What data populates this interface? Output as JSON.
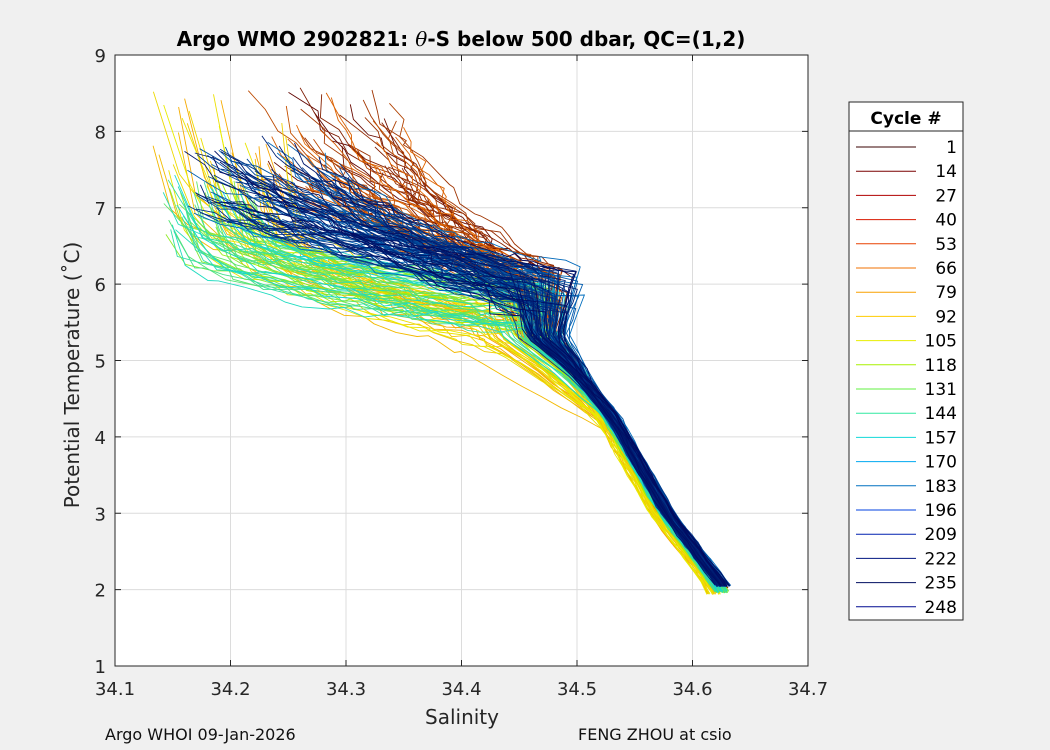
{
  "chart_data": {
    "type": "line",
    "title_prefix": "Argo WMO 2902821: ",
    "title_theta": "θ",
    "title_suffix": "-S below 500 dbar,  QC=(1,2)",
    "xlabel": "Salinity",
    "ylabel": "Potential Temperature (˚C)",
    "xlim": [
      34.1,
      34.7
    ],
    "ylim": [
      1,
      9
    ],
    "xticks": [
      34.1,
      34.2,
      34.3,
      34.4,
      34.5,
      34.6,
      34.7
    ],
    "xtick_labels": [
      "34.1",
      "34.2",
      "34.3",
      "34.4",
      "34.5",
      "34.6",
      "34.7"
    ],
    "yticks": [
      1,
      2,
      3,
      4,
      5,
      6,
      7,
      8,
      9
    ],
    "ytick_labels": [
      "1",
      "2",
      "3",
      "4",
      "5",
      "6",
      "7",
      "8",
      "9"
    ],
    "grid": true,
    "legend_title": "Cycle #",
    "legend_position": "right-outside",
    "legend_entries": [
      {
        "label": "1",
        "color": "#3a0000"
      },
      {
        "label": "14",
        "color": "#7a0000"
      },
      {
        "label": "27",
        "color": "#b00000"
      },
      {
        "label": "40",
        "color": "#d81800"
      },
      {
        "label": "53",
        "color": "#e84000"
      },
      {
        "label": "66",
        "color": "#f07000"
      },
      {
        "label": "79",
        "color": "#f8a000"
      },
      {
        "label": "92",
        "color": "#ffcc00"
      },
      {
        "label": "105",
        "color": "#e8ee00"
      },
      {
        "label": "118",
        "color": "#a8f000"
      },
      {
        "label": "131",
        "color": "#60f040"
      },
      {
        "label": "144",
        "color": "#30e8a0"
      },
      {
        "label": "157",
        "color": "#10d8d8"
      },
      {
        "label": "170",
        "color": "#00a8f0"
      },
      {
        "label": "183",
        "color": "#0070c0"
      },
      {
        "label": "196",
        "color": "#0040e0"
      },
      {
        "label": "209",
        "color": "#0020b0"
      },
      {
        "label": "222",
        "color": "#001480"
      },
      {
        "label": "235",
        "color": "#000e60"
      },
      {
        "label": "248",
        "color": "#000a90"
      }
    ],
    "series_groups": [
      {
        "name": "cycles 1-60 (red/orange)",
        "color_range": [
          "#5a0000",
          "#f07000"
        ],
        "profile_top": {
          "s": [
            34.22,
            34.35
          ],
          "t": [
            7.2,
            8.6
          ]
        },
        "mid": {
          "s": 34.46,
          "t": 5.9
        },
        "bottom": {
          "s": 34.625,
          "t": 2.02
        }
      },
      {
        "name": "cycles 70-110 (yellow)",
        "color_range": [
          "#f8a000",
          "#e8ee00"
        ],
        "profile_top": {
          "s": [
            34.13,
            34.25
          ],
          "t": [
            7.2,
            8.5
          ]
        },
        "mid": {
          "s": 34.44,
          "t": 5.4
        },
        "bottom": {
          "s": 34.63,
          "t": 1.95
        }
      },
      {
        "name": "cycles 110-175 (green/cyan)",
        "color_range": [
          "#a8f000",
          "#10d8d8"
        ],
        "profile_top": {
          "s": [
            34.14,
            34.22
          ],
          "t": [
            6.6,
            7.4
          ]
        },
        "mid": {
          "s": 34.46,
          "t": 5.7
        },
        "bottom": {
          "s": 34.625,
          "t": 1.97
        }
      },
      {
        "name": "cycles 180-248 (blue)",
        "color_range": [
          "#0070c0",
          "#000a60"
        ],
        "profile_top": {
          "s": [
            34.16,
            34.3
          ],
          "t": [
            6.8,
            7.9
          ]
        },
        "mid": {
          "s": 34.47,
          "t": 5.9
        },
        "bottom": {
          "s": 34.63,
          "t": 2.05
        }
      }
    ]
  },
  "footer": {
    "left": "Argo WHOI 09-Jan-2026",
    "right": "FENG ZHOU at csio"
  }
}
